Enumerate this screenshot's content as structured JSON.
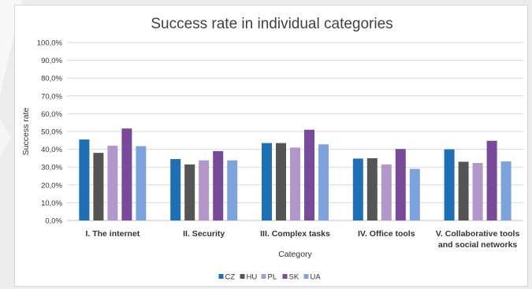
{
  "chart_data": {
    "type": "bar",
    "title": "Success rate in individual categories",
    "xlabel": "Category",
    "ylabel": "Success rate",
    "ylim": [
      0,
      100
    ],
    "y_ticks": [
      "0,0%",
      "10,0%",
      "20,0%",
      "30,0%",
      "40,0%",
      "50,0%",
      "60,0%",
      "70,0%",
      "80,0%",
      "90,0%",
      "100,0%"
    ],
    "categories": [
      [
        "I. The internet"
      ],
      [
        "II. Security"
      ],
      [
        "III. Complex tasks"
      ],
      [
        "IV. Office tools"
      ],
      [
        "V. Collaborative tools",
        "and social networks"
      ]
    ],
    "series": [
      {
        "name": "CZ",
        "color": "#1f6fb5",
        "values": [
          45.5,
          34.5,
          43.5,
          34.8,
          40.0
        ]
      },
      {
        "name": "HU",
        "color": "#555555",
        "values": [
          38.0,
          31.5,
          43.5,
          35.0,
          33.0
        ]
      },
      {
        "name": "PL",
        "color": "#b397c9",
        "values": [
          42.0,
          33.8,
          41.0,
          31.5,
          32.3
        ]
      },
      {
        "name": "SK",
        "color": "#7a4a9a",
        "values": [
          51.7,
          39.0,
          51.0,
          40.2,
          44.8
        ]
      },
      {
        "name": "UA",
        "color": "#7ea3dc",
        "values": [
          41.8,
          33.8,
          42.8,
          29.0,
          33.2
        ]
      }
    ],
    "grid": true,
    "legend_position": "bottom"
  }
}
